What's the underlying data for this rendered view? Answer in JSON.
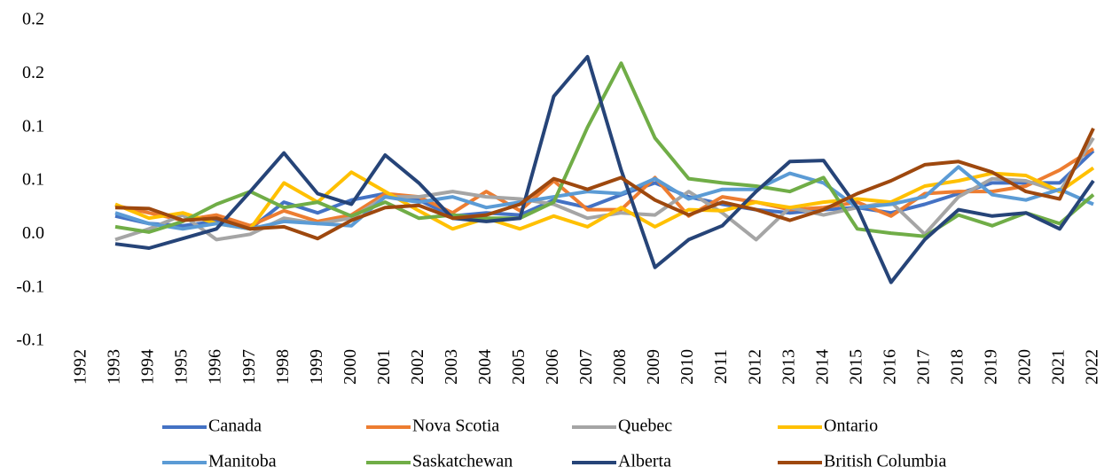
{
  "chart_data": {
    "type": "line",
    "categories": [
      "1992",
      "1993",
      "1994",
      "1995",
      "1996",
      "1997",
      "1998",
      "1999",
      "2000",
      "2001",
      "2002",
      "2003",
      "2004",
      "2005",
      "2006",
      "2007",
      "2008",
      "2009",
      "2010",
      "2011",
      "2012",
      "2013",
      "2014",
      "2015",
      "2016",
      "2017",
      "2018",
      "2019",
      "2020",
      "2021",
      "2022"
    ],
    "ylim": [
      -0.1,
      0.2
    ],
    "yticks": [
      {
        "value": -0.1,
        "label": "-0.1"
      },
      {
        "value": -0.05,
        "label": "-0.1"
      },
      {
        "value": 0,
        "label": "0.0"
      },
      {
        "value": 0.05,
        "label": "0.1"
      },
      0.1,
      {
        "value": 0.15,
        "label": "0.2"
      },
      0.2
    ],
    "grid": false,
    "legend": "bottom",
    "series": [
      {
        "name": "Canada",
        "color": "#4472c4",
        "values": [
          null,
          0.017,
          0.01,
          0.008,
          0.012,
          0.005,
          0.03,
          0.02,
          0.032,
          0.038,
          0.032,
          0.017,
          0.02,
          0.018,
          0.032,
          0.025,
          0.037,
          0.048,
          0.035,
          0.028,
          0.023,
          0.02,
          0.023,
          0.025,
          0.02,
          0.028,
          0.038,
          0.048,
          0.048,
          0.048,
          0.078
        ]
      },
      {
        "name": "Nova Scotia",
        "color": "#ed7d31",
        "values": [
          null,
          0.027,
          0.02,
          0.013,
          0.018,
          0.008,
          0.022,
          0.012,
          0.018,
          0.038,
          0.035,
          0.02,
          0.04,
          0.022,
          0.05,
          0.023,
          0.023,
          0.053,
          0.017,
          0.035,
          0.03,
          0.023,
          0.025,
          0.03,
          0.017,
          0.038,
          0.04,
          0.04,
          0.045,
          0.06,
          0.08
        ]
      },
      {
        "name": "Quebec",
        "color": "#a5a5a5",
        "values": [
          null,
          -0.005,
          0.005,
          0.018,
          -0.005,
          0,
          0.015,
          0.01,
          0.015,
          0.035,
          0.035,
          0.04,
          0.035,
          0.033,
          0.028,
          0.015,
          0.02,
          0.018,
          0.04,
          0.02,
          -0.005,
          0.025,
          0.018,
          0.025,
          0.03,
          0,
          0.035,
          0.052,
          0.05,
          0.04,
          0.09
        ]
      },
      {
        "name": "Ontario",
        "color": "#ffc000",
        "values": [
          null,
          0.028,
          0.015,
          0.02,
          0.01,
          0.005,
          0.048,
          0.03,
          0.058,
          0.04,
          0.022,
          0.005,
          0.015,
          0.005,
          0.017,
          0.007,
          0.025,
          0.007,
          0.023,
          0.022,
          0.03,
          0.025,
          0.03,
          0.033,
          0.03,
          0.045,
          0.05,
          0.057,
          0.055,
          0.04,
          0.062
        ]
      },
      {
        "name": "Manitoba",
        "color": "#5b9bd5",
        "values": [
          null,
          0.02,
          0.01,
          0.005,
          0.01,
          0.005,
          0.012,
          0.01,
          0.008,
          0.035,
          0.03,
          0.035,
          0.025,
          0.03,
          0.035,
          0.04,
          0.038,
          0.052,
          0.033,
          0.042,
          0.042,
          0.057,
          0.048,
          0.025,
          0.028,
          0.035,
          0.063,
          0.037,
          0.032,
          0.042,
          0.028
        ]
      },
      {
        "name": "Saskatchewan",
        "color": "#70ad47",
        "values": [
          null,
          0.007,
          0.002,
          0.012,
          0.028,
          0.04,
          0.025,
          0.03,
          0.017,
          0.03,
          0.015,
          0.018,
          0.015,
          0.015,
          0.03,
          0.1,
          0.16,
          0.09,
          0.052,
          0.048,
          0.045,
          0.04,
          0.053,
          0.005,
          0.001,
          -0.002,
          0.018,
          0.008,
          0.02,
          0.01,
          0.037
        ]
      },
      {
        "name": "Alberta",
        "color": "#264478",
        "values": [
          null,
          -0.009,
          -0.013,
          -0.004,
          0.005,
          0.04,
          0.076,
          0.038,
          0.028,
          0.074,
          0.048,
          0.015,
          0.012,
          0.015,
          0.129,
          0.166,
          0.06,
          -0.031,
          -0.005,
          0.008,
          0.04,
          0.068,
          0.069,
          0.025,
          -0.045,
          -0.005,
          0.023,
          0.017,
          0.02,
          0.005,
          0.05
        ]
      },
      {
        "name": "British Columbia",
        "color": "#9e480e",
        "values": [
          null,
          0.025,
          0.024,
          0.013,
          0.015,
          0.005,
          0.007,
          -0.004,
          0.013,
          0.025,
          0.027,
          0.015,
          0.018,
          0.028,
          0.052,
          0.042,
          0.053,
          0.032,
          0.018,
          0.03,
          0.023,
          0.013,
          0.023,
          0.038,
          0.05,
          0.065,
          0.068,
          0.058,
          0.04,
          0.033,
          0.099
        ]
      }
    ]
  }
}
